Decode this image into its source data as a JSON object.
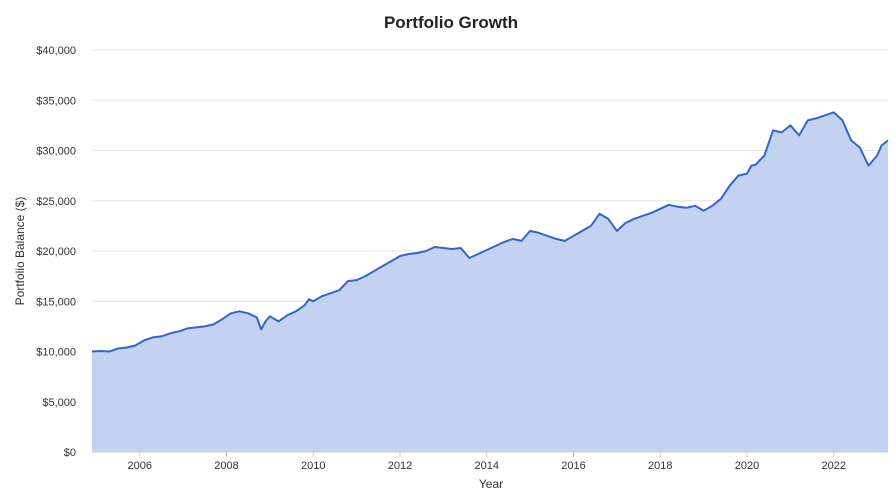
{
  "chart_data": {
    "type": "area",
    "title": "Portfolio Growth",
    "xlabel": "Year",
    "ylabel": "Portfolio Balance ($)",
    "ylim": [
      0,
      40000
    ],
    "xlim": [
      2004.9,
      2023.25
    ],
    "y_ticks": [
      0,
      5000,
      10000,
      15000,
      20000,
      25000,
      30000,
      35000,
      40000
    ],
    "y_tick_labels": [
      "$0",
      "$5,000",
      "$10,000",
      "$15,000",
      "$20,000",
      "$25,000",
      "$30,000",
      "$35,000",
      "$40,000"
    ],
    "x_ticks": [
      2006,
      2008,
      2010,
      2012,
      2014,
      2016,
      2018,
      2020,
      2022
    ],
    "x_tick_labels": [
      "2006",
      "2008",
      "2010",
      "2012",
      "2014",
      "2016",
      "2018",
      "2020",
      "2022"
    ],
    "grid": true,
    "colors": {
      "line": "#3366cc",
      "fill": "#c2d2f0"
    },
    "series": [
      {
        "name": "Portfolio Balance",
        "x": [
          2004.9,
          2005.1,
          2005.3,
          2005.5,
          2005.7,
          2005.9,
          2006.1,
          2006.3,
          2006.5,
          2006.7,
          2006.9,
          2007.1,
          2007.3,
          2007.5,
          2007.7,
          2007.9,
          2008.1,
          2008.3,
          2008.5,
          2008.7,
          2008.8,
          2008.9,
          2009.0,
          2009.2,
          2009.4,
          2009.6,
          2009.8,
          2009.9,
          2010.0,
          2010.2,
          2010.4,
          2010.6,
          2010.8,
          2011.0,
          2011.2,
          2011.4,
          2011.6,
          2011.8,
          2012.0,
          2012.2,
          2012.4,
          2012.6,
          2012.8,
          2013.0,
          2013.2,
          2013.4,
          2013.6,
          2013.8,
          2014.0,
          2014.2,
          2014.4,
          2014.6,
          2014.8,
          2015.0,
          2015.2,
          2015.4,
          2015.6,
          2015.8,
          2016.0,
          2016.2,
          2016.4,
          2016.6,
          2016.8,
          2017.0,
          2017.2,
          2017.4,
          2017.6,
          2017.8,
          2018.0,
          2018.2,
          2018.4,
          2018.6,
          2018.8,
          2019.0,
          2019.2,
          2019.4,
          2019.6,
          2019.8,
          2020.0,
          2020.1,
          2020.2,
          2020.4,
          2020.6,
          2020.8,
          2021.0,
          2021.2,
          2021.4,
          2021.6,
          2021.8,
          2022.0,
          2022.2,
          2022.4,
          2022.6,
          2022.8,
          2023.0,
          2023.1,
          2023.25
        ],
        "values": [
          10000,
          10050,
          10000,
          10300,
          10400,
          10600,
          11100,
          11400,
          11500,
          11800,
          12000,
          12300,
          12400,
          12500,
          12700,
          13200,
          13800,
          14000,
          13800,
          13400,
          12200,
          13000,
          13500,
          13000,
          13600,
          14000,
          14600,
          15200,
          15000,
          15500,
          15800,
          16100,
          17000,
          17100,
          17500,
          18000,
          18500,
          19000,
          19500,
          19700,
          19800,
          20000,
          20400,
          20300,
          20200,
          20300,
          19300,
          19700,
          20100,
          20500,
          20900,
          21200,
          21000,
          22000,
          21800,
          21500,
          21200,
          21000,
          21500,
          22000,
          22500,
          23700,
          23200,
          22000,
          22800,
          23200,
          23500,
          23800,
          24200,
          24600,
          24400,
          24300,
          24500,
          24000,
          24500,
          25200,
          26500,
          27500,
          27700,
          28500,
          28600,
          29500,
          32000,
          31800,
          32500,
          31500,
          33000,
          33200,
          33500,
          33800,
          33000,
          31000,
          30300,
          28500,
          29500,
          30500,
          31000
        ]
      }
    ]
  }
}
